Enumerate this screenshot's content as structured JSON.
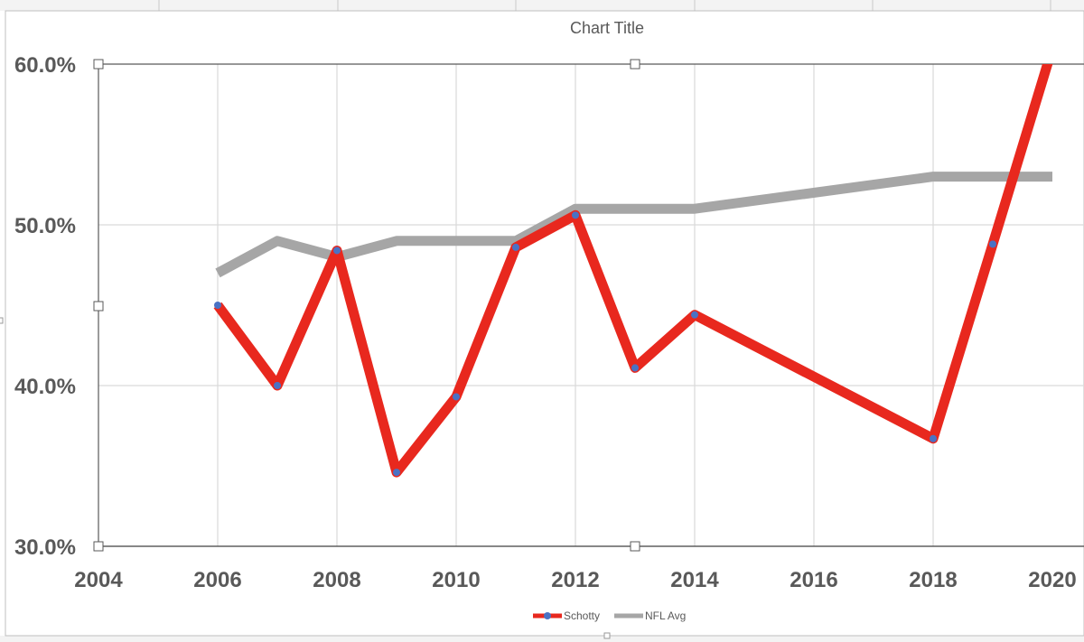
{
  "chart_data": {
    "type": "line",
    "title": "Chart Title",
    "xlabel": "",
    "ylabel": "",
    "xlim": [
      2004,
      2020
    ],
    "ylim": [
      0.3,
      0.6
    ],
    "x_ticks": [
      "2004",
      "2006",
      "2008",
      "2010",
      "2012",
      "2014",
      "2016",
      "2018",
      "2020"
    ],
    "y_ticks": [
      "30.0%",
      "40.0%",
      "50.0%",
      "60.0%"
    ],
    "grid": true,
    "legend_position": "bottom",
    "series": [
      {
        "name": "Schotty",
        "color": "#e8281e",
        "marker_color": "#4a72c4",
        "markers": true,
        "x": [
          2006,
          2007,
          2008,
          2009,
          2010,
          2011,
          2012,
          2013,
          2014,
          2018,
          2019,
          2020
        ],
        "y": [
          0.45,
          0.4,
          0.484,
          0.346,
          0.393,
          0.486,
          0.506,
          0.411,
          0.444,
          0.367,
          0.488,
          0.61
        ]
      },
      {
        "name": "NFL Avg",
        "color": "#a6a6a6",
        "markers": false,
        "x": [
          2006,
          2007,
          2008,
          2009,
          2010,
          2011,
          2012,
          2013,
          2014,
          2018,
          2019,
          2020
        ],
        "y": [
          0.47,
          0.49,
          0.48,
          0.49,
          0.49,
          0.49,
          0.51,
          0.51,
          0.51,
          0.53,
          0.53,
          0.53
        ]
      }
    ]
  }
}
